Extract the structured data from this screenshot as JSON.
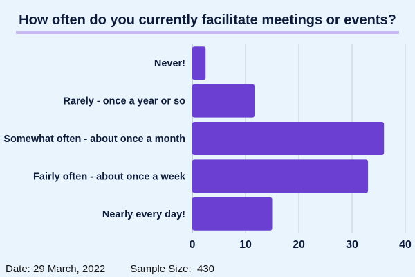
{
  "chart_data": {
    "type": "bar",
    "orientation": "horizontal",
    "title": "How often do you currently facilitate meetings or events?",
    "categories": [
      "Never!",
      "Rarely - once a year or so",
      "Somewhat often - about once a month",
      "Fairly often - about once a week",
      "Nearly every day!"
    ],
    "values": [
      2.5,
      11.7,
      36,
      33,
      15
    ],
    "xlim": [
      0,
      40
    ],
    "xticks": [
      "0",
      "10",
      "20",
      "30",
      "40"
    ],
    "grid": "vertical",
    "bar_color": "#6b3fd1"
  },
  "footer": {
    "date": "Date: 29 March, 2022",
    "sample": "Sample Size:  430"
  }
}
